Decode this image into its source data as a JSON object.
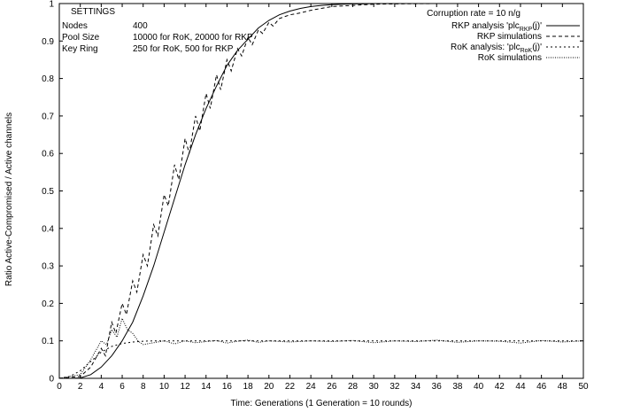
{
  "chart_data": {
    "type": "line",
    "title": "",
    "xlabel": "Time: Generations (1 Generation = 10 rounds)",
    "ylabel": "Ratio Active-Compromised / Active channels",
    "xlim": [
      0,
      50
    ],
    "ylim": [
      0,
      1
    ],
    "x_ticks": [
      "0",
      "2",
      "4",
      "6",
      "8",
      "10",
      "12",
      "14",
      "16",
      "18",
      "20",
      "22",
      "24",
      "26",
      "28",
      "30",
      "32",
      "34",
      "36",
      "38",
      "40",
      "42",
      "44",
      "46",
      "48",
      "50"
    ],
    "y_ticks": [
      "0",
      "0.1",
      "0.2",
      "0.3",
      "0.4",
      "0.5",
      "0.6",
      "0.7",
      "0.8",
      "0.9",
      "1"
    ],
    "grid": false,
    "legend_position": "top-right",
    "legend_title": "Corruption rate = 10 n/g",
    "settings": {
      "title": "SETTINGS",
      "rows": [
        {
          "label": "Nodes",
          "value": "400"
        },
        {
          "label": "Pool Size",
          "value": "10000 for RoK, 20000 for RKP"
        },
        {
          "label": "Key Ring",
          "value": "250 for RoK, 500 for RKP"
        }
      ]
    },
    "series": [
      {
        "name": "RKP analysis 'plc_RKP(j)'",
        "style": "solid",
        "x": [
          0,
          1,
          2,
          3,
          4,
          5,
          6,
          7,
          8,
          9,
          10,
          11,
          12,
          13,
          14,
          15,
          16,
          17,
          18,
          19,
          20,
          21,
          22,
          23,
          24,
          25,
          26,
          27,
          28,
          29,
          30,
          32,
          34,
          36,
          38,
          40,
          42,
          44,
          46,
          48,
          50
        ],
        "y": [
          0,
          0,
          0.001,
          0.01,
          0.03,
          0.06,
          0.1,
          0.15,
          0.22,
          0.3,
          0.39,
          0.48,
          0.57,
          0.65,
          0.72,
          0.78,
          0.835,
          0.875,
          0.905,
          0.935,
          0.955,
          0.97,
          0.98,
          0.987,
          0.992,
          0.995,
          0.997,
          0.998,
          0.999,
          0.999,
          1,
          1,
          1,
          1,
          1,
          1,
          1,
          1,
          1,
          1,
          1
        ]
      },
      {
        "name": "RKP simulations",
        "style": "dashed",
        "x": [
          0,
          2,
          3,
          4,
          4.4,
          5,
          5.4,
          6,
          6.4,
          7,
          7.4,
          8,
          8.4,
          9,
          9.4,
          10,
          10.4,
          11,
          11.4,
          12,
          12.4,
          13,
          13.4,
          14,
          14.4,
          15,
          15.4,
          16,
          16.4,
          17,
          17.4,
          18,
          18.4,
          19,
          19.4,
          20,
          20.4,
          21,
          22,
          23,
          24,
          25,
          26,
          28,
          30,
          32,
          36,
          40,
          44,
          48,
          50
        ],
        "y": [
          0,
          0.005,
          0.03,
          0.08,
          0.06,
          0.15,
          0.12,
          0.2,
          0.17,
          0.26,
          0.23,
          0.33,
          0.3,
          0.41,
          0.38,
          0.49,
          0.46,
          0.57,
          0.53,
          0.64,
          0.6,
          0.7,
          0.66,
          0.76,
          0.72,
          0.81,
          0.77,
          0.85,
          0.82,
          0.88,
          0.86,
          0.91,
          0.89,
          0.93,
          0.92,
          0.95,
          0.94,
          0.96,
          0.97,
          0.975,
          0.982,
          0.987,
          0.992,
          0.995,
          0.998,
          0.999,
          1,
          1,
          1,
          1,
          1
        ]
      },
      {
        "name": "RoK analysis: 'plc_RoK(j)'",
        "style": "dotted",
        "x": [
          0,
          1,
          2,
          3,
          4,
          5,
          6,
          7,
          8,
          9,
          10,
          12,
          14,
          16,
          18,
          20,
          25,
          30,
          35,
          40,
          45,
          50
        ],
        "y": [
          0,
          0.005,
          0.02,
          0.045,
          0.07,
          0.085,
          0.093,
          0.097,
          0.099,
          0.1,
          0.1,
          0.1,
          0.1,
          0.1,
          0.1,
          0.1,
          0.1,
          0.1,
          0.1,
          0.1,
          0.1,
          0.1
        ]
      },
      {
        "name": "RoK simulations",
        "style": "dense-dotted",
        "x": [
          0,
          2,
          3,
          4,
          4.5,
          5,
          5.5,
          6,
          6.5,
          7,
          7.5,
          8,
          9,
          10,
          11,
          12,
          13,
          14,
          15,
          16,
          17,
          18,
          19,
          20,
          22,
          24,
          26,
          28,
          30,
          32,
          34,
          36,
          38,
          40,
          42,
          44,
          46,
          48,
          50
        ],
        "y": [
          0,
          0.01,
          0.05,
          0.1,
          0.09,
          0.13,
          0.11,
          0.16,
          0.13,
          0.12,
          0.1,
          0.09,
          0.095,
          0.1,
          0.092,
          0.1,
          0.095,
          0.098,
          0.101,
          0.094,
          0.099,
          0.102,
          0.096,
          0.1,
          0.097,
          0.1,
          0.098,
          0.101,
          0.095,
          0.1,
          0.098,
          0.102,
          0.096,
          0.1,
          0.099,
          0.094,
          0.101,
          0.097,
          0.1
        ]
      }
    ]
  }
}
